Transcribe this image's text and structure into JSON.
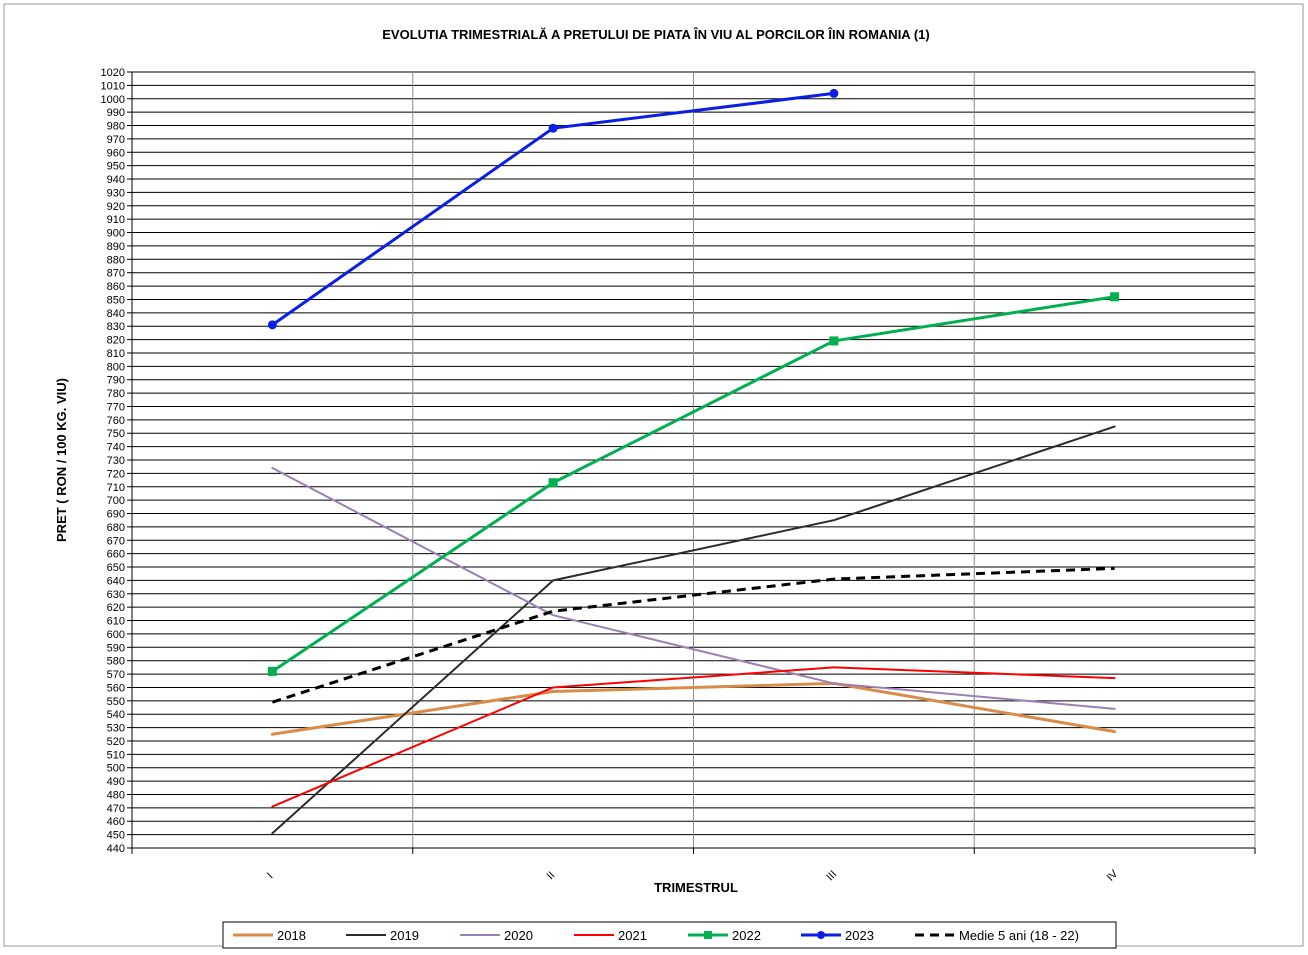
{
  "chart_data": {
    "type": "line",
    "title": "EVOLUTIA  TRIMESTRIALĂ  A PRETULUI  DE PIATA ÎN VIU AL PORCILOR ÎIN ROMANIA  (1)",
    "xlabel": "TRIMESTRUL",
    "ylabel": "PRET  ( RON  / 100 KG. VIU)",
    "categories": [
      "I",
      "II",
      "III",
      "IV"
    ],
    "ylim": [
      440,
      1020
    ],
    "ytick_step": 10,
    "grid": true,
    "legend_position": "bottom",
    "series": [
      {
        "name": "2018",
        "values": [
          525,
          557,
          563,
          527
        ],
        "color": "#d98c4a",
        "width": 3,
        "dash": "",
        "marker": "none"
      },
      {
        "name": "2019",
        "values": [
          451,
          640,
          685,
          755
        ],
        "color": "#2b2b2b",
        "width": 2,
        "dash": "",
        "marker": "none"
      },
      {
        "name": "2020",
        "values": [
          724,
          614,
          563,
          544
        ],
        "color": "#9b7fb6",
        "width": 2,
        "dash": "",
        "marker": "none"
      },
      {
        "name": "2021",
        "values": [
          471,
          560,
          575,
          567
        ],
        "color": "#ff0000",
        "width": 2,
        "dash": "",
        "marker": "none"
      },
      {
        "name": "2022",
        "values": [
          572,
          713,
          819,
          852
        ],
        "color": "#00b050",
        "width": 3,
        "dash": "",
        "marker": "square"
      },
      {
        "name": "2023",
        "values": [
          831,
          978,
          1004,
          null
        ],
        "color": "#0a1ee6",
        "width": 3,
        "dash": "",
        "marker": "circle"
      },
      {
        "name": "Medie 5 ani (18 - 22)",
        "values": [
          549,
          617,
          641,
          649
        ],
        "color": "#000000",
        "width": 3,
        "dash": "9,6",
        "marker": "none"
      }
    ]
  }
}
